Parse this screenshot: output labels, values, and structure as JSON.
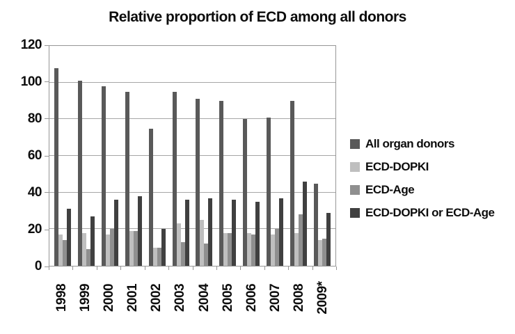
{
  "title": "Relative proportion of ECD among all donors",
  "colors": {
    "background": "#ffffff",
    "text": "#0d0d0d",
    "gridline": "#a6a6a6",
    "plot_border": "#969696"
  },
  "chart_data": {
    "type": "bar",
    "title": "Relative proportion of ECD among all donors",
    "categories": [
      "1998",
      "1999",
      "2000",
      "2001",
      "2002",
      "2003",
      "2004",
      "2005",
      "2006",
      "2007",
      "2008",
      "2009*"
    ],
    "series": [
      {
        "name": "All organ donors",
        "color": "#595959",
        "values": [
          108,
          101,
          98,
          95,
          75,
          95,
          91,
          90,
          80,
          81,
          90,
          45
        ]
      },
      {
        "name": "ECD-DOPKI",
        "color": "#bfbfbf",
        "values": [
          17,
          18,
          17,
          19,
          10,
          23,
          25,
          18,
          18,
          17,
          18,
          14
        ]
      },
      {
        "name": "ECD-Age",
        "color": "#8f8f8f",
        "values": [
          14,
          9,
          20,
          19,
          10,
          13,
          12,
          18,
          17,
          20,
          28,
          15
        ]
      },
      {
        "name": "ECD-DOPKI or ECD-Age",
        "color": "#404040",
        "values": [
          31,
          27,
          36,
          38,
          20,
          36,
          37,
          36,
          35,
          37,
          46,
          29
        ]
      }
    ],
    "xlabel": "",
    "ylabel": "",
    "ylim": [
      0,
      120
    ],
    "yticks": [
      0,
      20,
      40,
      60,
      80,
      100,
      120
    ],
    "grid": true,
    "legend_position": "right"
  }
}
